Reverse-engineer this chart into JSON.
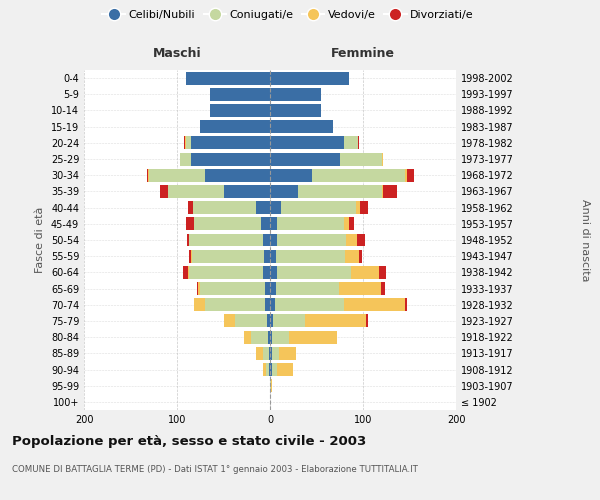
{
  "age_groups": [
    "100+",
    "95-99",
    "90-94",
    "85-89",
    "80-84",
    "75-79",
    "70-74",
    "65-69",
    "60-64",
    "55-59",
    "50-54",
    "45-49",
    "40-44",
    "35-39",
    "30-34",
    "25-29",
    "20-24",
    "15-19",
    "10-14",
    "5-9",
    "0-4"
  ],
  "birth_years": [
    "≤ 1902",
    "1903-1907",
    "1908-1912",
    "1913-1917",
    "1918-1922",
    "1923-1927",
    "1928-1932",
    "1933-1937",
    "1938-1942",
    "1943-1947",
    "1948-1952",
    "1953-1957",
    "1958-1962",
    "1963-1967",
    "1968-1972",
    "1973-1977",
    "1978-1982",
    "1983-1987",
    "1988-1992",
    "1993-1997",
    "1998-2002"
  ],
  "maschi": {
    "celibi": [
      0,
      0,
      1,
      1,
      2,
      3,
      5,
      5,
      7,
      6,
      7,
      10,
      15,
      50,
      70,
      85,
      85,
      75,
      65,
      65,
      90
    ],
    "coniugati": [
      0,
      0,
      3,
      6,
      18,
      35,
      65,
      70,
      80,
      78,
      80,
      72,
      68,
      60,
      60,
      12,
      5,
      0,
      0,
      0,
      0
    ],
    "vedovi": [
      0,
      0,
      4,
      8,
      8,
      12,
      12,
      2,
      1,
      1,
      0,
      0,
      0,
      0,
      1,
      0,
      1,
      0,
      0,
      0,
      0
    ],
    "divorziati": [
      0,
      0,
      0,
      0,
      0,
      0,
      0,
      2,
      6,
      2,
      2,
      8,
      5,
      8,
      1,
      0,
      1,
      0,
      0,
      0,
      0
    ]
  },
  "femmine": {
    "nubili": [
      0,
      0,
      2,
      2,
      2,
      3,
      5,
      6,
      7,
      6,
      7,
      8,
      12,
      30,
      45,
      75,
      80,
      68,
      55,
      55,
      85
    ],
    "coniugate": [
      0,
      1,
      5,
      8,
      18,
      35,
      75,
      68,
      80,
      75,
      75,
      72,
      80,
      90,
      100,
      45,
      15,
      0,
      0,
      0,
      0
    ],
    "vedove": [
      0,
      1,
      18,
      18,
      52,
      65,
      65,
      45,
      30,
      15,
      12,
      5,
      5,
      2,
      2,
      1,
      0,
      0,
      0,
      0,
      0
    ],
    "divorziate": [
      0,
      0,
      0,
      0,
      0,
      2,
      2,
      5,
      8,
      3,
      8,
      5,
      8,
      15,
      8,
      0,
      1,
      0,
      0,
      0,
      0
    ]
  },
  "colors": {
    "celibi_nubili": "#3a6ea5",
    "coniugati": "#c5d8a0",
    "vedovi": "#f5c55a",
    "divorziati": "#cc2222"
  },
  "xlim": 200,
  "title": "Popolazione per età, sesso e stato civile - 2003",
  "subtitle": "COMUNE DI BATTAGLIA TERME (PD) - Dati ISTAT 1° gennaio 2003 - Elaborazione TUTTITALIA.IT",
  "ylabel_left": "Fasce di età",
  "ylabel_right": "Anni di nascita",
  "xlabel_left": "Maschi",
  "xlabel_right": "Femmine",
  "background_color": "#f0f0f0",
  "plot_bg": "#ffffff"
}
